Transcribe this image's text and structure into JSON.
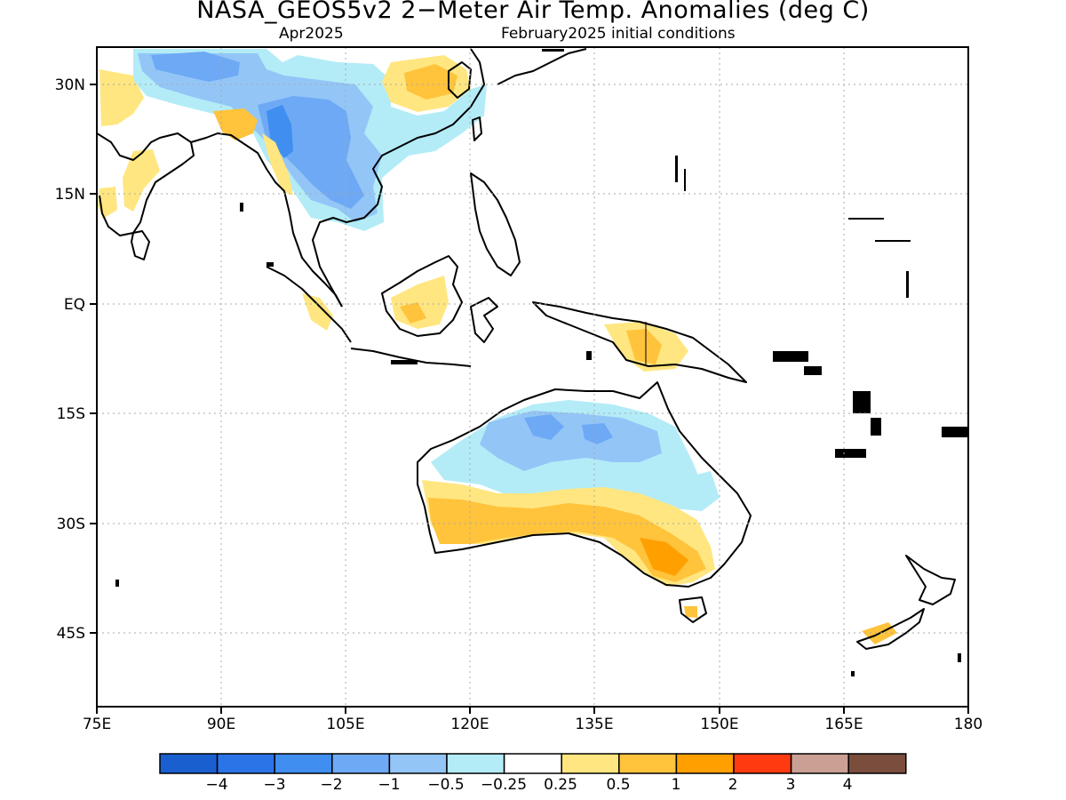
{
  "title": "NASA_GEOS5v2 2−Meter Air Temp. Anomalies (deg C)",
  "subtitle_left": "Apr2025",
  "subtitle_right": "February2025 initial conditions",
  "map": {
    "lon_range": [
      75,
      180
    ],
    "lat_range": [
      -55,
      35
    ],
    "lat_ticks": [
      {
        "lat": 30,
        "label": "30N"
      },
      {
        "lat": 15,
        "label": "15N"
      },
      {
        "lat": 0,
        "label": "EQ"
      },
      {
        "lat": -15,
        "label": "15S"
      },
      {
        "lat": -30,
        "label": "30S"
      },
      {
        "lat": -45,
        "label": "45S"
      }
    ],
    "lon_ticks": [
      {
        "lon": 75,
        "label": "75E"
      },
      {
        "lon": 90,
        "label": "90E"
      },
      {
        "lon": 105,
        "label": "105E"
      },
      {
        "lon": 120,
        "label": "120E"
      },
      {
        "lon": 135,
        "label": "135E"
      },
      {
        "lon": 150,
        "label": "150E"
      },
      {
        "lon": 165,
        "label": "165E"
      },
      {
        "lon": 180,
        "label": "180"
      }
    ]
  },
  "colorbar": {
    "colors": [
      "#1a5fcf",
      "#2b74e8",
      "#3f8ef0",
      "#6ea9f5",
      "#93c6f7",
      "#b3ecf7",
      "#ffffff",
      "#ffe680",
      "#ffc33c",
      "#ff9f00",
      "#ff3a10",
      "#c9a093",
      "#7a4d3d"
    ],
    "labels": [
      "−4",
      "−3",
      "−2",
      "−1",
      "−0.5",
      "−0.25",
      "0.25",
      "0.5",
      "1",
      "2",
      "3",
      "4"
    ]
  }
}
